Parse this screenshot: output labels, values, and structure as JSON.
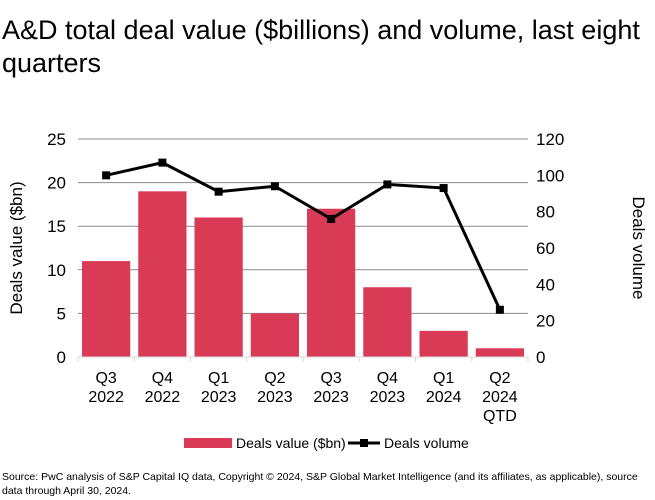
{
  "title": "A&D total deal value ($billions) and volume, last eight quarters",
  "source": "Source: PwC analysis of S&P Capital IQ data, Copyright © 2024, S&P Global Market Intelligence (and its affiliates, as applicable), source data through April 30, 2024.",
  "chart_data": {
    "type": "bar+line",
    "categories": [
      [
        "Q3",
        "2022"
      ],
      [
        "Q4",
        "2022"
      ],
      [
        "Q1",
        "2023"
      ],
      [
        "Q2",
        "2023"
      ],
      [
        "Q3",
        "2023"
      ],
      [
        "Q4",
        "2023"
      ],
      [
        "Q1",
        "2024"
      ],
      [
        "Q2",
        "2024",
        "QTD"
      ]
    ],
    "series": [
      {
        "name": "Deals value ($bn)",
        "type": "bar",
        "axis": "left",
        "color": "#d93a56",
        "values": [
          11,
          19,
          16,
          5,
          17,
          8,
          3,
          1
        ]
      },
      {
        "name": "Deals volume",
        "type": "line",
        "axis": "right",
        "color": "#000000",
        "values": [
          100,
          107,
          91,
          94,
          76,
          95,
          93,
          26
        ]
      }
    ],
    "ylabel": "Deals value ($bn)",
    "y2label": "Deals volume",
    "ylim": [
      0,
      25
    ],
    "yticks": [
      0,
      5,
      10,
      15,
      20,
      25
    ],
    "y2lim": [
      0,
      120
    ],
    "y2ticks": [
      0,
      20,
      40,
      60,
      80,
      100,
      120
    ],
    "grid": true,
    "legend": "bottom"
  }
}
